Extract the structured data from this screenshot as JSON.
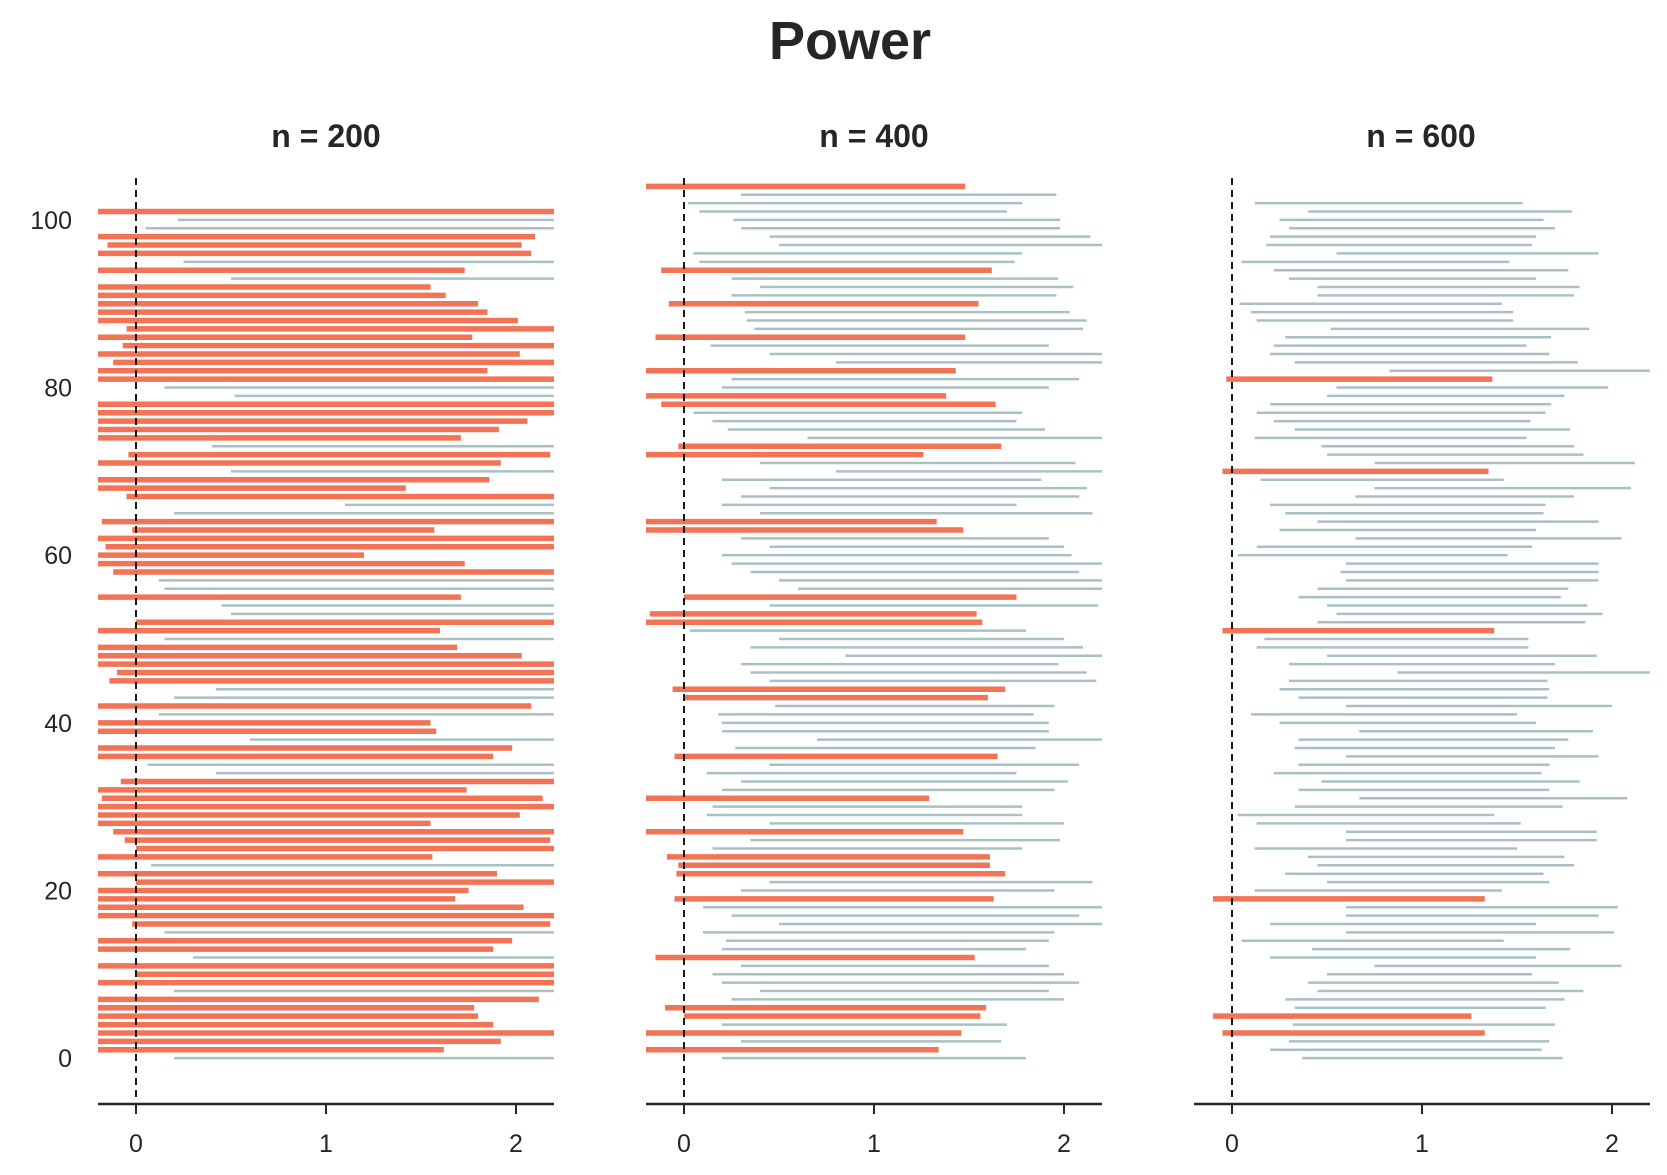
{
  "figure": {
    "title": "Power"
  },
  "chart_data": {
    "type": "interval",
    "title": "Power",
    "xlim": [
      -0.2,
      2.2
    ],
    "ylim": [
      -5,
      105
    ],
    "x_ticks": [
      0,
      1,
      2
    ],
    "y_ticks": [
      0,
      20,
      40,
      60,
      80,
      100
    ],
    "reference_line": {
      "x": 0,
      "style": "dashed"
    },
    "grid": false,
    "colors": {
      "excludes_zero": "#a9c1c3",
      "includes_zero": "#f27355"
    },
    "panels": [
      {
        "title": "n = 200",
        "intervals": [
          [
            0.2,
            2.2
          ],
          [
            -0.2,
            1.62
          ],
          [
            -0.2,
            1.92
          ],
          [
            -0.2,
            2.2
          ],
          [
            -0.2,
            1.88
          ],
          [
            -0.2,
            1.8
          ],
          [
            -0.2,
            1.78
          ],
          [
            -0.2,
            2.12
          ],
          [
            0.2,
            2.2
          ],
          [
            -0.2,
            2.2
          ],
          [
            0.0,
            2.2
          ],
          [
            -0.2,
            2.2
          ],
          [
            0.3,
            2.2
          ],
          [
            -0.2,
            1.88
          ],
          [
            -0.2,
            1.98
          ],
          [
            0.15,
            2.2
          ],
          [
            -0.02,
            2.18
          ],
          [
            -0.2,
            2.2
          ],
          [
            -0.2,
            2.04
          ],
          [
            -0.2,
            1.68
          ],
          [
            -0.2,
            1.75
          ],
          [
            0.0,
            2.2
          ],
          [
            -0.2,
            1.9
          ],
          [
            0.08,
            2.2
          ],
          [
            -0.2,
            1.56
          ],
          [
            0.0,
            2.2
          ],
          [
            -0.06,
            2.18
          ],
          [
            -0.12,
            2.2
          ],
          [
            -0.2,
            1.55
          ],
          [
            -0.2,
            2.02
          ],
          [
            -0.2,
            2.2
          ],
          [
            -0.18,
            2.14
          ],
          [
            -0.2,
            1.74
          ],
          [
            -0.08,
            2.2
          ],
          [
            0.42,
            2.2
          ],
          [
            0.06,
            2.2
          ],
          [
            -0.2,
            1.88
          ],
          [
            -0.2,
            1.98
          ],
          [
            0.6,
            2.2
          ],
          [
            -0.2,
            1.58
          ],
          [
            -0.2,
            1.55
          ],
          [
            0.12,
            2.2
          ],
          [
            -0.2,
            2.08
          ],
          [
            0.2,
            2.2
          ],
          [
            0.42,
            2.2
          ],
          [
            -0.14,
            2.2
          ],
          [
            -0.1,
            2.2
          ],
          [
            -0.2,
            2.2
          ],
          [
            -0.2,
            2.03
          ],
          [
            -0.2,
            1.69
          ],
          [
            0.15,
            2.2
          ],
          [
            -0.2,
            1.6
          ],
          [
            0.0,
            2.2
          ],
          [
            0.5,
            2.2
          ],
          [
            0.45,
            2.2
          ],
          [
            -0.2,
            1.71
          ],
          [
            0.15,
            2.2
          ],
          [
            0.12,
            2.2
          ],
          [
            -0.12,
            2.2
          ],
          [
            -0.2,
            1.73
          ],
          [
            -0.2,
            1.2
          ],
          [
            -0.16,
            2.2
          ],
          [
            -0.2,
            2.2
          ],
          [
            -0.02,
            1.57
          ],
          [
            -0.18,
            2.2
          ],
          [
            0.2,
            2.2
          ],
          [
            1.1,
            2.2
          ],
          [
            -0.05,
            2.2
          ],
          [
            -0.2,
            1.42
          ],
          [
            -0.2,
            1.86
          ],
          [
            0.5,
            2.2
          ],
          [
            -0.2,
            1.92
          ],
          [
            -0.04,
            2.18
          ],
          [
            0.4,
            2.2
          ],
          [
            -0.2,
            1.71
          ],
          [
            -0.2,
            1.91
          ],
          [
            -0.2,
            2.06
          ],
          [
            -0.2,
            2.2
          ],
          [
            -0.2,
            2.2
          ],
          [
            0.52,
            2.2
          ],
          [
            0.15,
            2.2
          ],
          [
            -0.2,
            2.2
          ],
          [
            -0.2,
            1.85
          ],
          [
            -0.12,
            2.2
          ],
          [
            -0.2,
            2.02
          ],
          [
            -0.07,
            2.2
          ],
          [
            -0.2,
            1.77
          ],
          [
            -0.05,
            2.2
          ],
          [
            -0.2,
            2.01
          ],
          [
            -0.2,
            1.85
          ],
          [
            -0.2,
            1.8
          ],
          [
            -0.2,
            1.63
          ],
          [
            -0.2,
            1.55
          ],
          [
            0.5,
            2.2
          ],
          [
            -0.2,
            1.73
          ],
          [
            0.25,
            2.2
          ],
          [
            -0.2,
            2.08
          ],
          [
            -0.15,
            2.03
          ],
          [
            -0.2,
            2.1
          ],
          [
            0.05,
            2.2
          ],
          [
            0.22,
            2.2
          ],
          [
            -0.2,
            2.2
          ]
        ]
      },
      {
        "title": "n = 400",
        "intervals": [
          [
            0.2,
            1.8
          ],
          [
            -0.2,
            1.34
          ],
          [
            0.3,
            1.67
          ],
          [
            -0.2,
            1.46
          ],
          [
            0.2,
            1.7
          ],
          [
            0.0,
            1.56
          ],
          [
            -0.1,
            1.59
          ],
          [
            0.25,
            2.0
          ],
          [
            0.4,
            1.92
          ],
          [
            0.2,
            2.08
          ],
          [
            0.15,
            2.0
          ],
          [
            0.3,
            1.92
          ],
          [
            -0.15,
            1.53
          ],
          [
            0.2,
            1.8
          ],
          [
            0.22,
            1.92
          ],
          [
            0.1,
            1.95
          ],
          [
            0.5,
            2.2
          ],
          [
            0.25,
            2.08
          ],
          [
            0.1,
            2.2
          ],
          [
            -0.05,
            1.63
          ],
          [
            0.3,
            1.95
          ],
          [
            0.45,
            2.15
          ],
          [
            -0.04,
            1.69
          ],
          [
            -0.03,
            1.61
          ],
          [
            -0.09,
            1.61
          ],
          [
            0.15,
            1.78
          ],
          [
            0.35,
            1.98
          ],
          [
            -0.2,
            1.47
          ],
          [
            0.45,
            2.0
          ],
          [
            0.12,
            1.78
          ],
          [
            0.15,
            1.78
          ],
          [
            -0.2,
            1.29
          ],
          [
            0.2,
            1.95
          ],
          [
            0.3,
            2.02
          ],
          [
            0.12,
            1.75
          ],
          [
            0.45,
            2.08
          ],
          [
            -0.05,
            1.65
          ],
          [
            0.27,
            1.85
          ],
          [
            0.7,
            2.2
          ],
          [
            0.2,
            1.92
          ],
          [
            0.2,
            1.92
          ],
          [
            0.18,
            1.84
          ],
          [
            0.48,
            1.95
          ],
          [
            0.0,
            1.6
          ],
          [
            -0.06,
            1.69
          ],
          [
            0.45,
            2.17
          ],
          [
            0.35,
            2.12
          ],
          [
            0.3,
            1.97
          ],
          [
            0.85,
            2.2
          ],
          [
            0.35,
            2.1
          ],
          [
            0.5,
            2.0
          ],
          [
            0.03,
            1.8
          ],
          [
            -0.2,
            1.57
          ],
          [
            -0.18,
            1.54
          ],
          [
            0.45,
            2.18
          ],
          [
            0.0,
            1.75
          ],
          [
            0.6,
            2.2
          ],
          [
            0.5,
            2.2
          ],
          [
            0.35,
            2.08
          ],
          [
            0.25,
            2.2
          ],
          [
            0.2,
            2.04
          ],
          [
            0.45,
            2.0
          ],
          [
            0.3,
            1.92
          ],
          [
            -0.2,
            1.47
          ],
          [
            -0.2,
            1.33
          ],
          [
            0.4,
            2.15
          ],
          [
            0.2,
            1.75
          ],
          [
            0.3,
            2.08
          ],
          [
            0.45,
            2.12
          ],
          [
            0.2,
            1.88
          ],
          [
            0.8,
            2.2
          ],
          [
            0.4,
            2.06
          ],
          [
            -0.2,
            1.26
          ],
          [
            -0.03,
            1.67
          ],
          [
            0.65,
            2.2
          ],
          [
            0.23,
            1.9
          ],
          [
            0.15,
            1.75
          ],
          [
            0.05,
            1.78
          ],
          [
            -0.12,
            1.64
          ],
          [
            -0.2,
            1.38
          ],
          [
            0.2,
            1.92
          ],
          [
            0.25,
            2.08
          ],
          [
            -0.2,
            1.43
          ],
          [
            0.8,
            2.2
          ],
          [
            0.45,
            2.2
          ],
          [
            0.14,
            1.92
          ],
          [
            -0.15,
            1.48
          ],
          [
            0.37,
            2.1
          ],
          [
            0.33,
            2.12
          ],
          [
            0.32,
            2.03
          ],
          [
            -0.08,
            1.55
          ],
          [
            0.25,
            1.96
          ],
          [
            0.4,
            2.05
          ],
          [
            0.25,
            1.97
          ],
          [
            -0.12,
            1.62
          ],
          [
            0.08,
            1.74
          ],
          [
            0.05,
            1.78
          ],
          [
            0.5,
            2.2
          ],
          [
            0.45,
            2.14
          ],
          [
            0.3,
            1.98
          ],
          [
            0.26,
            1.98
          ],
          [
            0.08,
            1.7
          ],
          [
            0.02,
            1.78
          ],
          [
            0.3,
            1.96
          ],
          [
            -0.2,
            1.48
          ]
        ]
      },
      {
        "title": "n = 600",
        "intervals": [
          [
            0.37,
            1.74
          ],
          [
            0.2,
            1.63
          ],
          [
            0.3,
            1.67
          ],
          [
            -0.05,
            1.33
          ],
          [
            0.32,
            1.7
          ],
          [
            -0.1,
            1.26
          ],
          [
            0.33,
            1.65
          ],
          [
            0.28,
            1.75
          ],
          [
            0.45,
            1.85
          ],
          [
            0.4,
            1.72
          ],
          [
            0.5,
            1.58
          ],
          [
            0.75,
            2.05
          ],
          [
            0.2,
            1.6
          ],
          [
            0.42,
            1.78
          ],
          [
            0.05,
            1.43
          ],
          [
            0.6,
            2.01
          ],
          [
            0.2,
            1.6
          ],
          [
            0.6,
            1.93
          ],
          [
            0.6,
            2.03
          ],
          [
            -0.1,
            1.33
          ],
          [
            0.12,
            1.42
          ],
          [
            0.5,
            1.67
          ],
          [
            0.28,
            1.64
          ],
          [
            0.45,
            1.8
          ],
          [
            0.4,
            1.75
          ],
          [
            0.12,
            1.5
          ],
          [
            0.6,
            1.92
          ],
          [
            0.6,
            1.92
          ],
          [
            0.13,
            1.52
          ],
          [
            0.03,
            1.38
          ],
          [
            0.33,
            1.74
          ],
          [
            0.67,
            2.08
          ],
          [
            0.35,
            1.67
          ],
          [
            0.47,
            1.83
          ],
          [
            0.22,
            1.63
          ],
          [
            0.35,
            1.67
          ],
          [
            0.6,
            1.93
          ],
          [
            0.33,
            1.7
          ],
          [
            0.35,
            1.77
          ],
          [
            0.67,
            1.9
          ],
          [
            0.25,
            1.6
          ],
          [
            0.1,
            1.5
          ],
          [
            0.6,
            2.0
          ],
          [
            0.35,
            1.66
          ],
          [
            0.25,
            1.67
          ],
          [
            0.3,
            1.66
          ],
          [
            0.87,
            2.2
          ],
          [
            0.3,
            1.7
          ],
          [
            0.5,
            1.92
          ],
          [
            0.13,
            1.56
          ],
          [
            0.17,
            1.56
          ],
          [
            -0.05,
            1.38
          ],
          [
            0.45,
            1.86
          ],
          [
            0.55,
            1.95
          ],
          [
            0.5,
            1.87
          ],
          [
            0.35,
            1.73
          ],
          [
            0.45,
            1.77
          ],
          [
            0.6,
            1.93
          ],
          [
            0.57,
            1.93
          ],
          [
            0.6,
            1.93
          ],
          [
            0.03,
            1.45
          ],
          [
            0.13,
            1.58
          ],
          [
            0.65,
            2.05
          ],
          [
            0.25,
            1.6
          ],
          [
            0.45,
            1.93
          ],
          [
            0.28,
            1.64
          ],
          [
            0.2,
            1.65
          ],
          [
            0.65,
            1.8
          ],
          [
            0.75,
            2.1
          ],
          [
            0.15,
            1.43
          ],
          [
            -0.05,
            1.35
          ],
          [
            0.75,
            2.12
          ],
          [
            0.5,
            1.85
          ],
          [
            0.47,
            1.8
          ],
          [
            0.12,
            1.55
          ],
          [
            0.33,
            1.78
          ],
          [
            0.22,
            1.57
          ],
          [
            0.13,
            1.65
          ],
          [
            0.2,
            1.68
          ],
          [
            0.5,
            1.75
          ],
          [
            0.55,
            1.98
          ],
          [
            -0.03,
            1.37
          ],
          [
            0.83,
            2.2
          ],
          [
            0.33,
            1.82
          ],
          [
            0.2,
            1.67
          ],
          [
            0.22,
            1.55
          ],
          [
            0.28,
            1.68
          ],
          [
            0.52,
            1.88
          ],
          [
            0.13,
            1.48
          ],
          [
            0.1,
            1.48
          ],
          [
            0.04,
            1.42
          ],
          [
            0.45,
            1.8
          ],
          [
            0.45,
            1.83
          ],
          [
            0.3,
            1.6
          ],
          [
            0.22,
            1.77
          ],
          [
            0.05,
            1.46
          ],
          [
            0.55,
            1.93
          ],
          [
            0.18,
            1.58
          ],
          [
            0.2,
            1.6
          ],
          [
            0.3,
            1.7
          ],
          [
            0.25,
            1.64
          ],
          [
            0.4,
            1.79
          ],
          [
            0.12,
            1.53
          ]
        ]
      }
    ]
  }
}
